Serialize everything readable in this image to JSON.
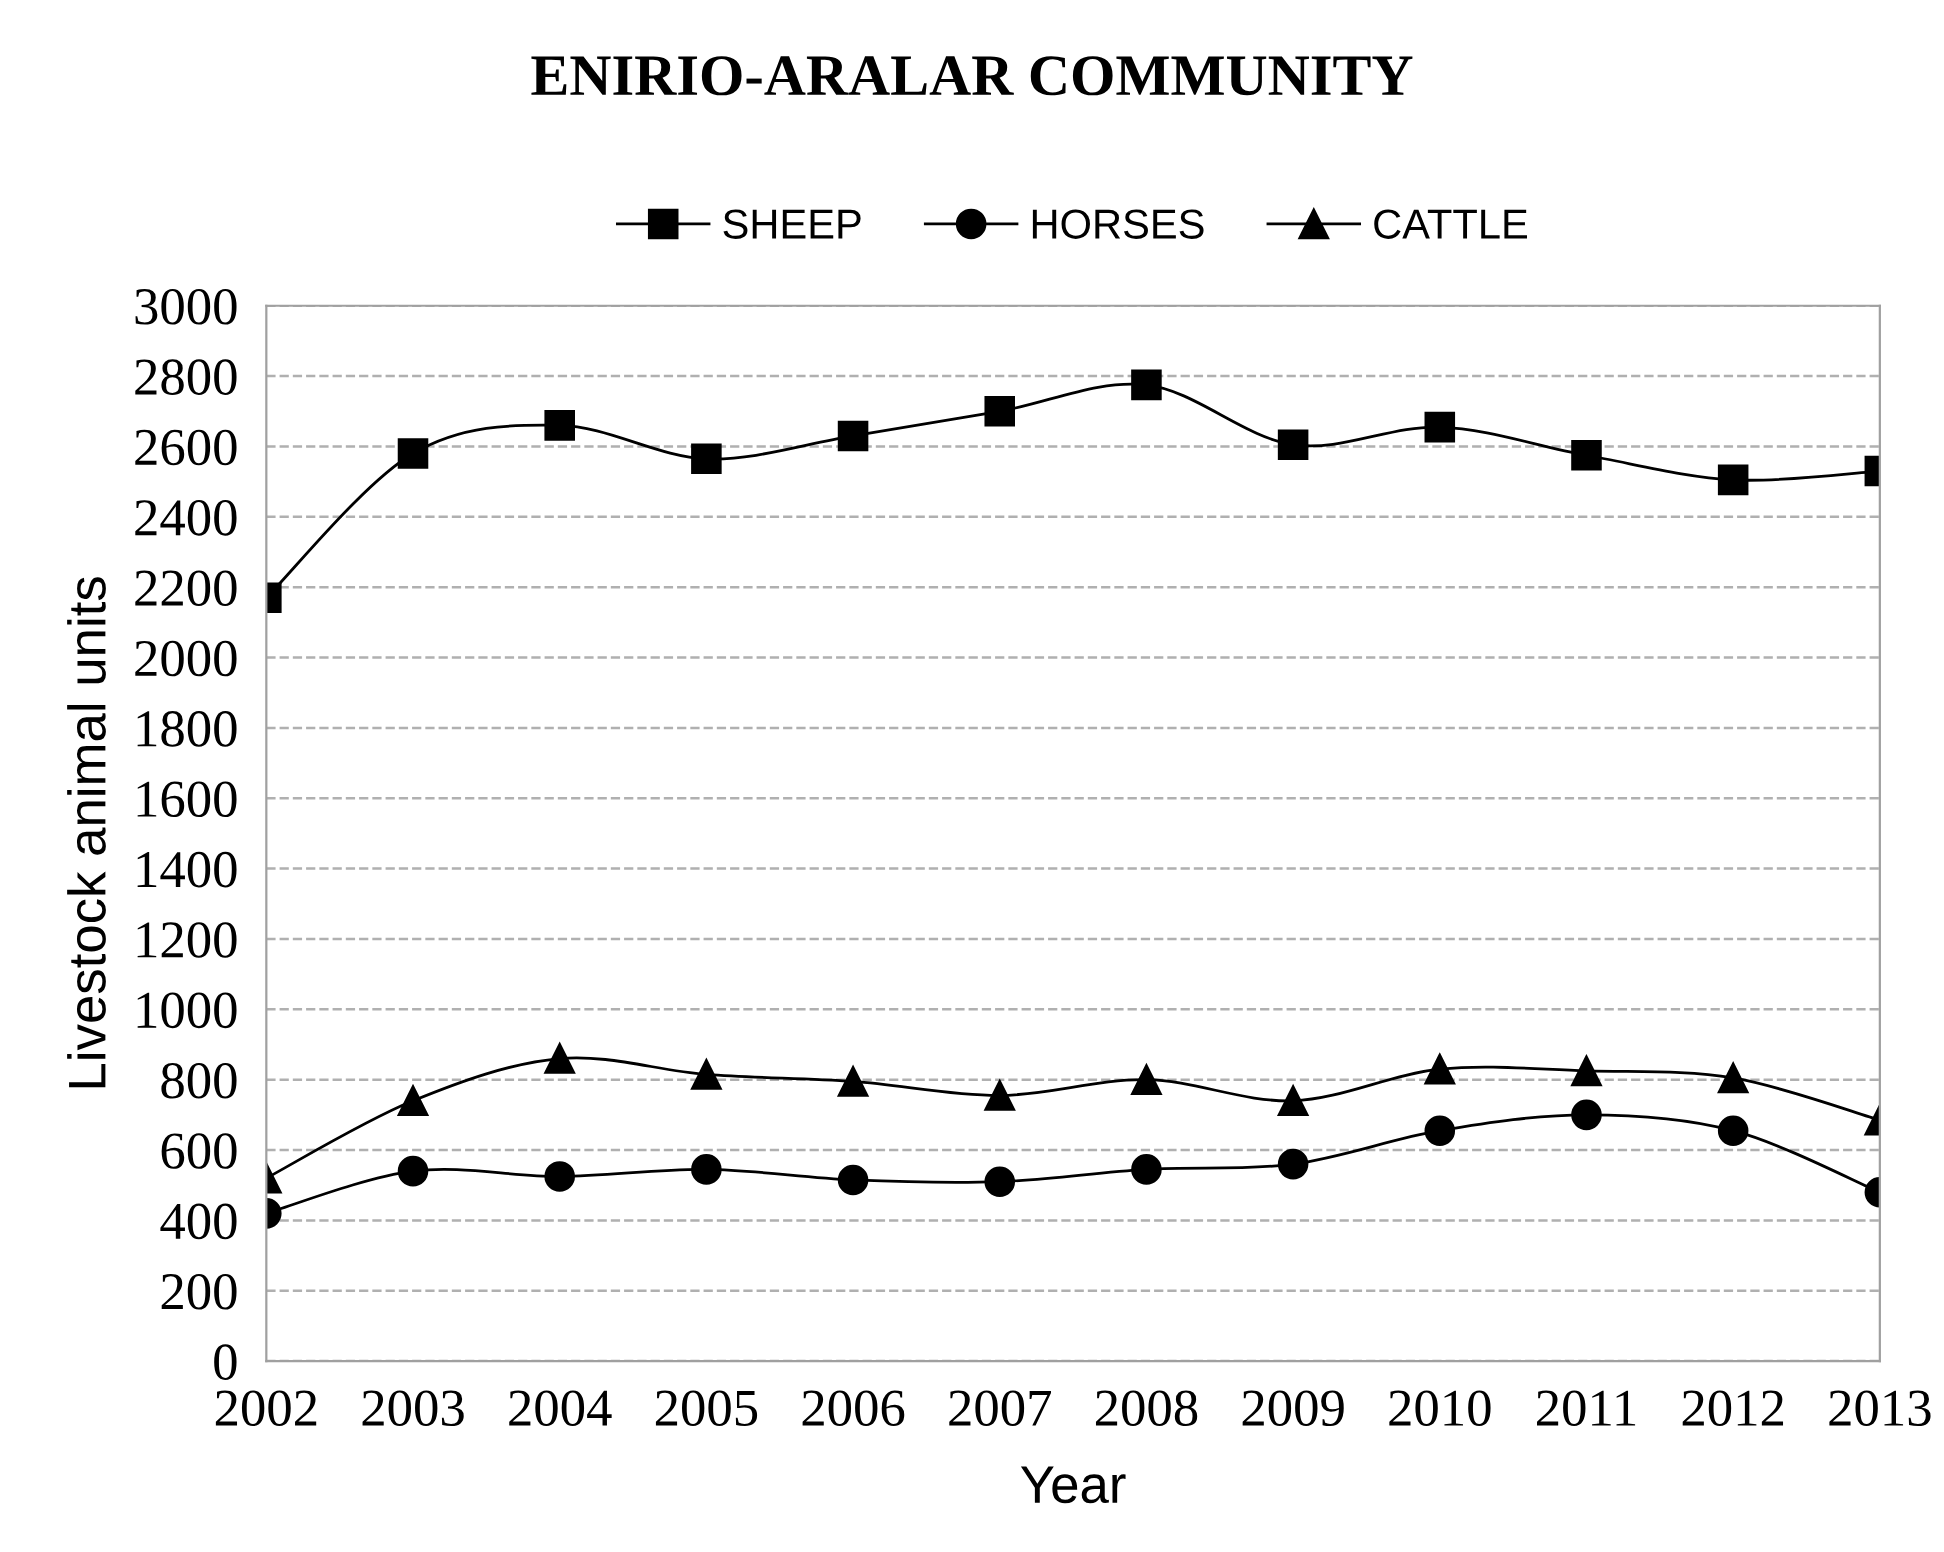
{
  "chart_data": {
    "type": "line",
    "title": "ENIRIO-ARALAR COMMUNITY",
    "xlabel": "Year",
    "ylabel": "Livestock animal units",
    "categories": [
      "2002",
      "2003",
      "2004",
      "2005",
      "2006",
      "2007",
      "2008",
      "2009",
      "2010",
      "2011",
      "2012",
      "2013"
    ],
    "series": [
      {
        "name": "SHEEP",
        "color": "#000000",
        "marker": "square",
        "values": [
          2170,
          2580,
          2660,
          2565,
          2630,
          2700,
          2775,
          2605,
          2655,
          2575,
          2505,
          2530
        ]
      },
      {
        "name": "HORSES",
        "color": "#000000",
        "marker": "circle",
        "values": [
          420,
          540,
          525,
          545,
          515,
          510,
          545,
          560,
          655,
          700,
          655,
          480
        ]
      },
      {
        "name": "CATTLE",
        "color": "#000000",
        "marker": "triangle",
        "values": [
          520,
          740,
          860,
          815,
          795,
          755,
          800,
          740,
          830,
          825,
          805,
          685
        ]
      }
    ],
    "ylim": [
      0,
      3000
    ],
    "yticks": [
      0,
      200,
      400,
      600,
      800,
      1000,
      1200,
      1400,
      1600,
      1800,
      2000,
      2200,
      2400,
      2600,
      2800,
      3000
    ],
    "grid": "y",
    "legend": "top",
    "line_style": "solid"
  }
}
